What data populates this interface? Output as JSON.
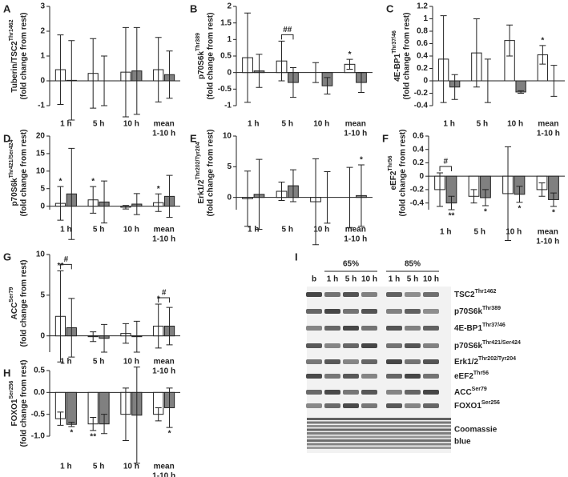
{
  "chart_data": [
    {
      "type": "bar",
      "panel": "A",
      "ylabel": "Tuberin/TSC2",
      "ylabel_sup": "Thr1462",
      "ylabel_note": "(fold change from rest)",
      "categories": [
        [
          "1 h"
        ],
        [
          "5 h"
        ],
        [
          "10 h"
        ],
        [
          "mean",
          "1-10 h"
        ]
      ],
      "series": [
        {
          "color": "#ffffff",
          "values": [
            0.45,
            0.3,
            0.35,
            0.45
          ],
          "errors": [
            1.4,
            1.4,
            1.8,
            1.3
          ]
        },
        {
          "color": "#808080",
          "values": [
            0.02,
            0.0,
            0.4,
            0.25
          ],
          "errors": [
            1.6,
            1.0,
            1.75,
            0.95
          ]
        }
      ],
      "ylim": [
        -1,
        3
      ],
      "yticks": [
        -1,
        0,
        1,
        2,
        3
      ],
      "annotations": []
    },
    {
      "type": "bar",
      "panel": "B",
      "ylabel": "p70S6k",
      "ylabel_sup": "Thr389",
      "ylabel_note": "(fold change from rest)",
      "categories": [
        [
          "1 h"
        ],
        [
          "5 h"
        ],
        [
          "10 h"
        ],
        [
          "mean",
          "1-10 h"
        ]
      ],
      "series": [
        {
          "color": "#ffffff",
          "values": [
            0.45,
            0.35,
            0.0,
            0.25
          ],
          "errors": [
            1.35,
            0.6,
            0.3,
            0.15
          ]
        },
        {
          "color": "#808080",
          "values": [
            0.05,
            -0.3,
            -0.4,
            -0.3
          ],
          "errors": [
            0.5,
            0.45,
            0.25,
            0.3
          ]
        }
      ],
      "ylim": [
        -1,
        2
      ],
      "yticks": [
        -1,
        -0.5,
        0,
        0.5,
        1,
        1.5,
        2
      ],
      "annotations": [
        {
          "text": "##",
          "category": 1,
          "bracket": true
        },
        {
          "text": "*",
          "category": 3,
          "series": 0,
          "position": "above"
        }
      ]
    },
    {
      "type": "bar",
      "panel": "C",
      "ylabel": "4E-BP1",
      "ylabel_sup": "Thr37/46",
      "ylabel_note": "(fold change from rest)",
      "categories": [
        [
          "1 h"
        ],
        [
          "5 h"
        ],
        [
          "10 h"
        ],
        [
          "mean",
          "1-10 h"
        ]
      ],
      "series": [
        {
          "color": "#ffffff",
          "values": [
            0.35,
            0.45,
            0.65,
            0.42
          ],
          "errors": [
            0.7,
            0.55,
            0.25,
            0.15
          ]
        },
        {
          "color": "#808080",
          "values": [
            -0.1,
            0.0,
            -0.18,
            0.0
          ],
          "errors": [
            0.2,
            0.35,
            0.02,
            0.25
          ]
        }
      ],
      "ylim": [
        -0.4,
        1.2
      ],
      "yticks": [
        -0.4,
        -0.2,
        0,
        0.2,
        0.4,
        0.6,
        0.8,
        1,
        1.2
      ],
      "annotations": [
        {
          "text": "*",
          "category": 3,
          "series": 0,
          "position": "above"
        }
      ]
    },
    {
      "type": "bar",
      "panel": "D",
      "ylabel": "p70S6k",
      "ylabel_sup": "Thr421/Ser424",
      "ylabel_note": "(fold change from rest)",
      "categories": [
        [
          "1 h"
        ],
        [
          "5 h"
        ],
        [
          "10 h"
        ],
        [
          "mean",
          "1-10 h"
        ]
      ],
      "series": [
        {
          "color": "#ffffff",
          "values": [
            0.8,
            1.8,
            -0.3,
            1.0
          ],
          "errors": [
            4.8,
            3.8,
            0.5,
            2.5
          ]
        },
        {
          "color": "#808080",
          "values": [
            3.5,
            1.2,
            0.6,
            2.8
          ],
          "errors": [
            13,
            6,
            3,
            6
          ]
        }
      ],
      "ylim": [
        -1,
        20
      ],
      "yticks": [
        0,
        5,
        10,
        15,
        20
      ],
      "annotations": [
        {
          "text": "*",
          "category": 0,
          "series": 0,
          "position": "above"
        },
        {
          "text": "*",
          "category": 1,
          "series": 0,
          "position": "above"
        },
        {
          "text": "*",
          "category": 3,
          "series": 0,
          "position": "above"
        }
      ]
    },
    {
      "type": "bar",
      "panel": "E",
      "ylabel": "Erk1/2",
      "ylabel_sup": "Thr202/Tyr204",
      "ylabel_note": "(fold change from rest)",
      "categories": [
        [
          "1 h"
        ],
        [
          "5 h"
        ],
        [
          "10 h"
        ],
        [
          "mean",
          "1-10 h"
        ]
      ],
      "series": [
        {
          "color": "#ffffff",
          "values": [
            -0.2,
            1.0,
            -0.7,
            0.0
          ],
          "errors": [
            4.5,
            1.5,
            7,
            4.9
          ]
        },
        {
          "color": "#808080",
          "values": [
            0.5,
            1.9,
            0.0,
            0.3
          ],
          "errors": [
            5.7,
            2.6,
            4.2,
            5
          ]
        }
      ],
      "ylim": [
        -2,
        10
      ],
      "yticks": [
        0,
        5,
        10
      ],
      "annotations": [
        {
          "text": "*",
          "category": 3,
          "series": 1,
          "position": "above"
        }
      ]
    },
    {
      "type": "bar",
      "panel": "F",
      "ylabel": "eEF2",
      "ylabel_sup": "Thr56",
      "ylabel_note": "(fold change from rest)",
      "categories": [
        [
          "1 h"
        ],
        [
          "5 h"
        ],
        [
          "10 h"
        ],
        [
          "mean",
          "1-10 h"
        ]
      ],
      "series": [
        {
          "color": "#ffffff",
          "values": [
            -0.2,
            -0.3,
            -0.26,
            -0.2
          ],
          "errors": [
            0.25,
            0.1,
            0.7,
            0.1
          ]
        },
        {
          "color": "#808080",
          "values": [
            -0.4,
            -0.32,
            -0.27,
            -0.35
          ],
          "errors": [
            0.1,
            0.12,
            0.12,
            0.1
          ]
        }
      ],
      "ylim": [
        -0.5,
        0.6
      ],
      "yticks": [
        -0.4,
        -0.2,
        0,
        0.2,
        0.4,
        0.6
      ],
      "annotations": [
        {
          "text": "#",
          "category": 0,
          "bracket": true
        },
        {
          "text": "**",
          "category": 0,
          "series": 1,
          "position": "below"
        },
        {
          "text": "*",
          "category": 1,
          "series": 1,
          "position": "below"
        },
        {
          "text": "*",
          "category": 2,
          "series": 1,
          "position": "below"
        },
        {
          "text": "*",
          "category": 3,
          "series": 1,
          "position": "below"
        }
      ]
    },
    {
      "type": "bar",
      "panel": "G",
      "ylabel": "ACC",
      "ylabel_sup": "Ser79",
      "ylabel_note": "(fold change from rest)",
      "categories": [
        [
          "1 h"
        ],
        [
          "5 h"
        ],
        [
          "10 h"
        ],
        [
          "mean",
          "1-10 h"
        ]
      ],
      "series": [
        {
          "color": "#ffffff",
          "values": [
            2.4,
            -0.1,
            0.3,
            1.2
          ],
          "errors": [
            5.6,
            0.6,
            1.2,
            2.7
          ]
        },
        {
          "color": "#808080",
          "values": [
            1.0,
            -0.3,
            -0.1,
            1.2
          ],
          "errors": [
            3.6,
            1.7,
            1.9,
            2.3
          ]
        }
      ],
      "ylim": [
        -2,
        10
      ],
      "yticks": [
        0,
        5,
        10
      ],
      "annotations": [
        {
          "text": "**",
          "category": 0,
          "series": 0,
          "position": "above"
        },
        {
          "text": "#",
          "category": 0,
          "bracket": true
        },
        {
          "text": "#",
          "category": 3,
          "bracket": true
        },
        {
          "text": "*",
          "category": 3,
          "series": 0,
          "position": "above"
        }
      ]
    },
    {
      "type": "bar",
      "panel": "H",
      "ylabel": "FOXO1",
      "ylabel_sup": "Ser256",
      "ylabel_note": "(fold change from rest)",
      "categories": [
        [
          "1 h"
        ],
        [
          "5 h"
        ],
        [
          "10 h"
        ],
        [
          "mean",
          "1-10 h"
        ]
      ],
      "series": [
        {
          "color": "#ffffff",
          "values": [
            -0.6,
            -0.72,
            -0.5,
            -0.5
          ],
          "errors": [
            0.15,
            0.15,
            0.6,
            0.15
          ]
        },
        {
          "color": "#808080",
          "values": [
            -0.73,
            -0.72,
            -0.52,
            -0.35
          ],
          "errors": [
            0.05,
            0.22,
            1.1,
            0.45
          ]
        }
      ],
      "ylim": [
        -1,
        0.5
      ],
      "yticks": [
        {
          "value": -1,
          "label": "-1.0"
        },
        -0.5,
        {
          "value": 0,
          "label": "0.0"
        },
        0.5
      ],
      "annotations": [
        {
          "text": "*",
          "category": 0,
          "series": 1,
          "position": "below"
        },
        {
          "text": "**",
          "category": 1,
          "series": 0,
          "position": "below"
        },
        {
          "text": "*",
          "category": 3,
          "series": 1,
          "position": "below"
        }
      ]
    }
  ],
  "blot": {
    "panel": "I",
    "groups": [
      "65%",
      "85%"
    ],
    "lanes": [
      "b",
      "1 h",
      "5 h",
      "10 h",
      "1 h",
      "5 h",
      "10 h"
    ],
    "proteins": [
      {
        "name": "TSC2",
        "site": "Thr1462"
      },
      {
        "name": "p70S6k",
        "site": "Thr389"
      },
      {
        "name": "4E-BP1",
        "site": "Thr37/46"
      },
      {
        "name": "p70S6k",
        "site": "Thr421/Ser424"
      },
      {
        "name": "Erk1/2",
        "site": "Thr202/Tyr204"
      },
      {
        "name": "eEF2",
        "site": "Thr56"
      },
      {
        "name": "ACC",
        "site": "Ser79"
      },
      {
        "name": "FOXO1",
        "site": "Ser256"
      }
    ],
    "stain": [
      "Coomassie",
      "blue"
    ]
  }
}
